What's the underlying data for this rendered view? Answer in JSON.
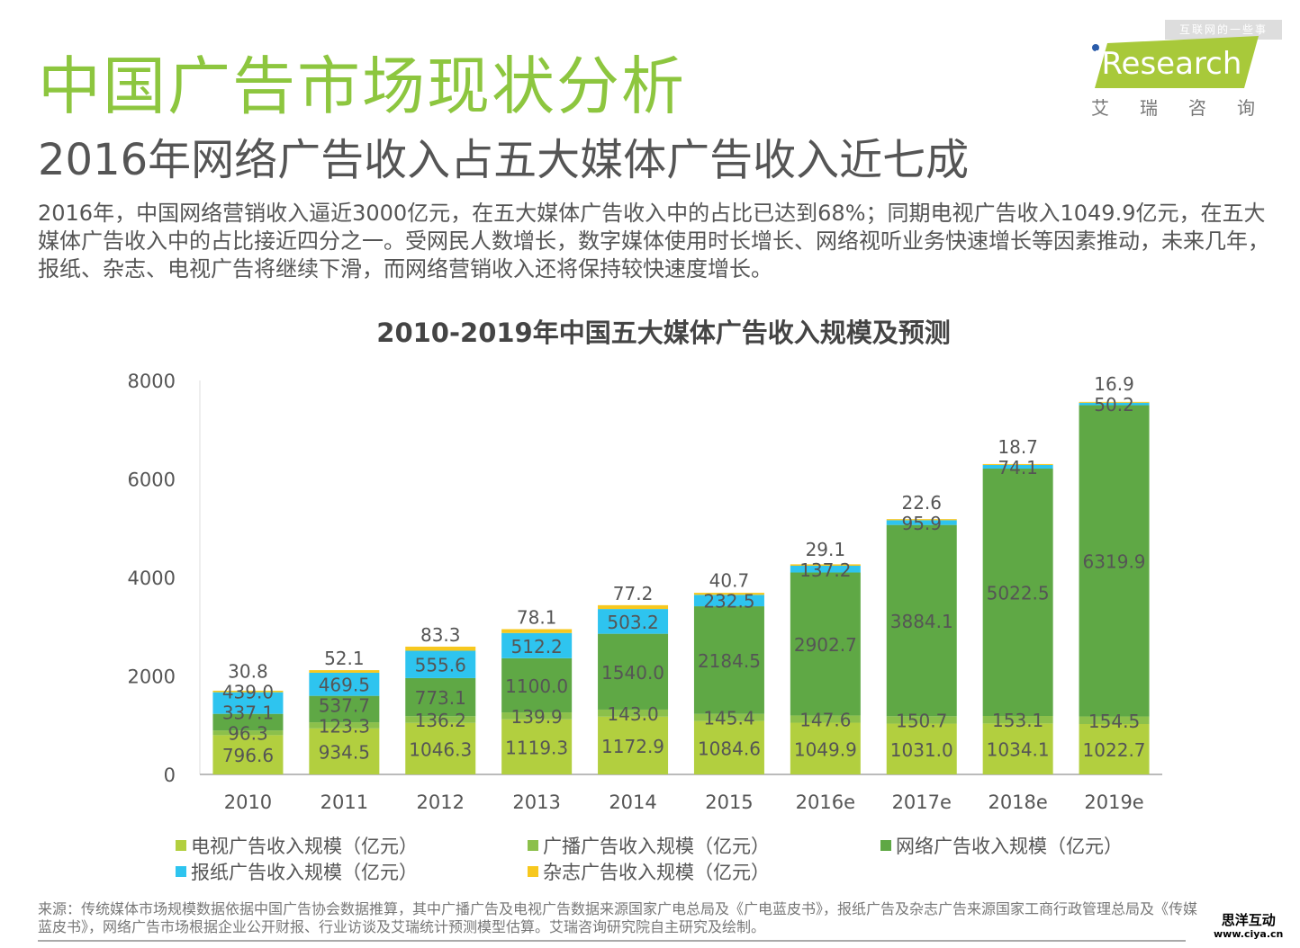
{
  "header": {
    "title": "中国广告市场现状分析",
    "subtitle": "2016年网络广告收入占五大媒体广告收入近七成",
    "description": "2016年，中国网络营销收入逼近3000亿元，在五大媒体广告收入中的占比已达到68%；同期电视广告收入1049.9亿元，在五大媒体广告收入中的占比接近四分之一。受网民人数增长，数字媒体使用时长增长、网络视听业务快速增长等因素推动，未来几年，报纸、杂志、电视广告将继续下滑，而网络营销收入还将保持较快速度增长。"
  },
  "logo": {
    "tag": "互联网的一些事",
    "brand": "iResearch",
    "cn": "艾瑞咨询",
    "accent": "#a8c93a"
  },
  "chart_data": {
    "type": "bar",
    "stacked": true,
    "title": "2010-2019年中国五大媒体广告收入规模及预测",
    "categories": [
      "2010",
      "2011",
      "2012",
      "2013",
      "2014",
      "2015",
      "2016e",
      "2017e",
      "2018e",
      "2019e"
    ],
    "ylim": [
      0,
      8000
    ],
    "yticks": [
      "0",
      "2000",
      "4000",
      "6000",
      "8000"
    ],
    "legend_position": "bottom",
    "series": [
      {
        "name": "电视广告收入规模（亿元）",
        "color": "#b2cf3f",
        "values": [
          796.6,
          934.5,
          1046.3,
          1119.3,
          1172.9,
          1084.6,
          1049.9,
          1031.0,
          1034.1,
          1022.7
        ]
      },
      {
        "name": "广播广告收入规模（亿元）",
        "color": "#8cc04b",
        "values": [
          96.3,
          123.3,
          136.2,
          139.9,
          143.0,
          145.4,
          147.6,
          150.7,
          153.1,
          154.5
        ]
      },
      {
        "name": "网络广告收入规模（亿元）",
        "color": "#5fa845",
        "values": [
          337.1,
          537.7,
          773.1,
          1100.0,
          1540.0,
          2184.5,
          2902.7,
          3884.1,
          5022.5,
          6319.9
        ]
      },
      {
        "name": "报纸广告收入规模（亿元）",
        "color": "#2ec4ef",
        "values": [
          439.0,
          469.5,
          555.6,
          512.2,
          503.2,
          232.5,
          137.2,
          95.9,
          74.1,
          50.2
        ]
      },
      {
        "name": "杂志广告收入规模（亿元）",
        "color": "#f7c81e",
        "values": [
          30.8,
          52.1,
          83.3,
          78.1,
          77.2,
          40.7,
          29.1,
          22.6,
          18.7,
          16.9
        ]
      }
    ]
  },
  "footer": {
    "source": "来源：传统媒体市场规模数据依据中国广告协会数据推算，其中广播广告及电视广告数据来源国家广电总局及《广电蓝皮书》，报纸广告及杂志广告来源国家工商行政管理总局及《传媒蓝皮书》，网络广告市场根据企业公开财报、行业访谈及艾瑞统计预测模型估算。艾瑞咨询研究院自主研究及绘制。",
    "watermark": "思洋互动",
    "watermark_url": "www.ciya.cn"
  }
}
